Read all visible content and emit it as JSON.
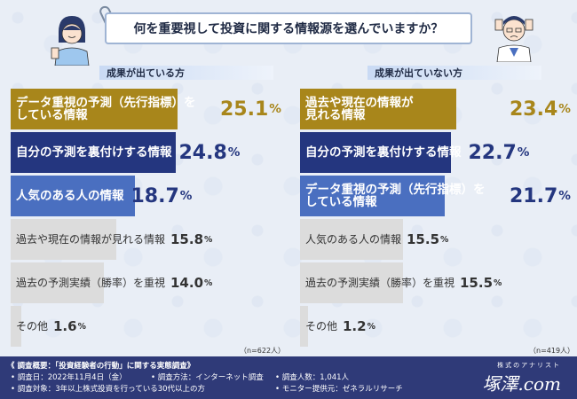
{
  "title": "何を重要視して投資に関する情報源を選んでいますか？",
  "colors": {
    "gold": "#a8861b",
    "navy": "#24367f",
    "blue": "#4a6fc0",
    "gray": "#dcdcdc",
    "gold_text": "#a8861b",
    "navy_text": "#24367f",
    "blue_text": "#24367f",
    "gray_text": "#333333"
  },
  "chart_data": [
    {
      "type": "bar",
      "title": "成果が出ている方",
      "note": "（n=622人）",
      "unit": "%",
      "xlim": [
        0,
        40
      ],
      "categories": [
        "データ重視の予測（先行指標）をしている情報",
        "自分の予測を裏付けする情報",
        "人気のある人の情報",
        "過去や現在の情報が見れる情報",
        "過去の予測実績（勝率）を重視",
        "その他"
      ],
      "values": [
        25.1,
        24.8,
        18.7,
        15.8,
        14.0,
        1.6
      ],
      "value_labels": [
        "25.1",
        "24.8",
        "18.7",
        "15.8",
        "14.0",
        "1.6"
      ],
      "label_lines": [
        [
          "データ重視の予測（先行指標）を",
          "している情報"
        ],
        [
          "自分の予測を裏付けする情報"
        ],
        [
          "人気のある人の情報"
        ],
        [
          "過去や現在の情報が見れる情報"
        ],
        [
          "過去の予測実績（勝率）を重視"
        ],
        [
          "その他"
        ]
      ],
      "styles": [
        "gold",
        "navy",
        "blue",
        "gray",
        "gray",
        "gray"
      ]
    },
    {
      "type": "bar",
      "title": "成果が出ていない方",
      "note": "（n=419人）",
      "unit": "%",
      "xlim": [
        0,
        40
      ],
      "categories": [
        "過去や現在の情報が見れる情報",
        "自分の予測を裏付けする情報",
        "データ重視の予測（先行指標）をしている情報",
        "人気のある人の情報",
        "過去の予測実績（勝率）を重視",
        "その他"
      ],
      "values": [
        23.4,
        22.7,
        21.7,
        15.5,
        15.5,
        1.2
      ],
      "value_labels": [
        "23.4",
        "22.7",
        "21.7",
        "15.5",
        "15.5",
        "1.2"
      ],
      "label_lines": [
        [
          "過去や現在の情報が",
          "見れる情報"
        ],
        [
          "自分の予測を裏付けする情報"
        ],
        [
          "データ重視の予測（先行指標）を",
          "している情報"
        ],
        [
          "人気のある人の情報"
        ],
        [
          "過去の予測実績（勝率）を重視"
        ],
        [
          "その他"
        ]
      ],
      "styles": [
        "gold",
        "navy",
        "blue",
        "gray",
        "gray",
        "gray"
      ]
    }
  ],
  "footer": {
    "heading": "《 調査概要：「投資経験者の行動」に関する実態調査》",
    "items": [
      "• 調査日：2022年11月4日（金）",
      "• 調査方法：インターネット調査",
      "• 調査人数：1,041人",
      "• 調査対象：3年以上株式投資を行っている30代以上の方",
      "• モニター提供元：ゼネラルリサーチ"
    ],
    "brand_tag": "株式のアナリスト",
    "brand_name": "塚澤.com"
  }
}
